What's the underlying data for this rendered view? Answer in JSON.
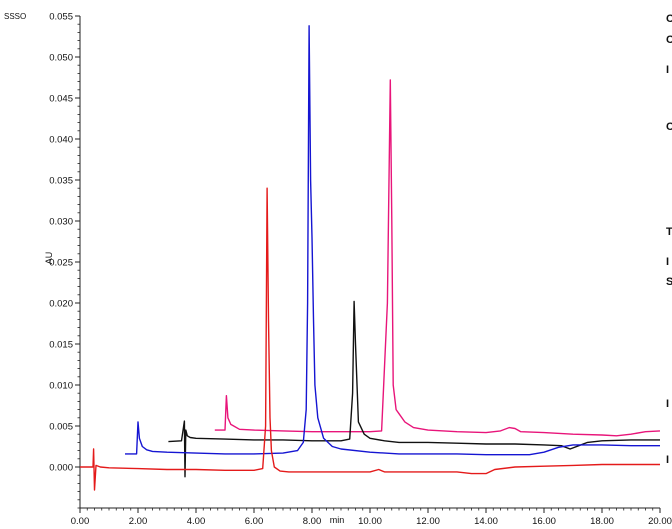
{
  "corner_label": "SSSO",
  "right_edge_glyphs": [
    "C",
    "C",
    "I",
    "C",
    "T",
    "I",
    "S",
    "I",
    "I"
  ],
  "chart_data": {
    "type": "line",
    "title": "",
    "xlabel": "min",
    "ylabel": "AU",
    "xlim": [
      0,
      20
    ],
    "ylim": [
      -0.005,
      0.055
    ],
    "x_ticks": [
      "0.00",
      "2.00",
      "4.00",
      "6.00",
      "8.00",
      "10.00",
      "12.00",
      "14.00",
      "16.00",
      "18.00",
      "20.00"
    ],
    "y_ticks": [
      "0.055",
      "0.050",
      "0.045",
      "0.040",
      "0.035",
      "0.030",
      "0.025",
      "0.020",
      "0.015",
      "0.010",
      "0.005",
      "0.000"
    ],
    "grid": false,
    "legend": "none",
    "series": [
      {
        "color": "#e8157a",
        "x": [
          4.65,
          5.0,
          5.05,
          5.1,
          5.2,
          5.3,
          5.5,
          6.0,
          7.0,
          8.0,
          9.0,
          10.0,
          10.4,
          10.6,
          10.7,
          10.75,
          10.8,
          10.9,
          11.0,
          11.2,
          11.5,
          12.0,
          13.0,
          14.0,
          14.5,
          14.8,
          15.0,
          15.2,
          16.0,
          17.0,
          18.0,
          18.5,
          19.0,
          19.5,
          20.0
        ],
        "y": [
          0.0045,
          0.0045,
          0.0087,
          0.006,
          0.0052,
          0.005,
          0.0046,
          0.0045,
          0.0044,
          0.0043,
          0.0043,
          0.0043,
          0.0044,
          0.02,
          0.0472,
          0.03,
          0.01,
          0.007,
          0.0065,
          0.0055,
          0.0048,
          0.0045,
          0.0043,
          0.0042,
          0.0044,
          0.0048,
          0.0047,
          0.0043,
          0.0042,
          0.004,
          0.0039,
          0.0038,
          0.004,
          0.0043,
          0.0044
        ]
      },
      {
        "color": "#111111",
        "x": [
          3.05,
          3.5,
          3.6,
          3.62,
          3.65,
          3.7,
          3.8,
          4.0,
          5.0,
          6.0,
          7.0,
          8.0,
          9.0,
          9.3,
          9.4,
          9.45,
          9.5,
          9.6,
          9.8,
          10.0,
          10.5,
          11.0,
          12.0,
          13.0,
          14.0,
          15.0,
          16.0,
          16.6,
          16.9,
          17.2,
          17.5,
          18.0,
          19.0,
          20.0
        ],
        "y": [
          0.0031,
          0.0032,
          0.0056,
          -0.0012,
          0.0045,
          0.0038,
          0.0036,
          0.0035,
          0.0034,
          0.0033,
          0.0033,
          0.0032,
          0.0032,
          0.0034,
          0.009,
          0.0202,
          0.015,
          0.0055,
          0.004,
          0.0035,
          0.0032,
          0.003,
          0.003,
          0.0029,
          0.0028,
          0.0028,
          0.0027,
          0.0026,
          0.0022,
          0.0026,
          0.003,
          0.0032,
          0.0033,
          0.0033
        ]
      },
      {
        "color": "#1515d2",
        "x": [
          1.55,
          1.95,
          2.0,
          2.05,
          2.15,
          2.3,
          2.5,
          3.0,
          4.0,
          5.0,
          6.0,
          7.0,
          7.5,
          7.7,
          7.8,
          7.85,
          7.9,
          7.95,
          8.0,
          8.05,
          8.1,
          8.2,
          8.4,
          8.7,
          9.0,
          10.0,
          11.0,
          12.0,
          13.0,
          14.0,
          15.0,
          15.5,
          16.0,
          16.5,
          17.0,
          18.0,
          19.0,
          20.0
        ],
        "y": [
          0.0016,
          0.0016,
          0.0055,
          0.0035,
          0.0025,
          0.0021,
          0.0019,
          0.0018,
          0.0017,
          0.0016,
          0.0016,
          0.0017,
          0.002,
          0.003,
          0.007,
          0.02,
          0.0538,
          0.035,
          0.028,
          0.018,
          0.01,
          0.006,
          0.0035,
          0.0025,
          0.0022,
          0.0018,
          0.0016,
          0.0016,
          0.0016,
          0.0015,
          0.0015,
          0.0015,
          0.0018,
          0.0024,
          0.0027,
          0.0027,
          0.0026,
          0.0026
        ]
      },
      {
        "color": "#e41a1a",
        "x": [
          0.0,
          0.35,
          0.45,
          0.47,
          0.5,
          0.55,
          0.7,
          1.0,
          2.0,
          3.0,
          4.0,
          5.0,
          6.0,
          6.3,
          6.4,
          6.45,
          6.5,
          6.55,
          6.6,
          6.7,
          6.9,
          7.2,
          8.0,
          9.0,
          10.0,
          10.3,
          10.5,
          11.0,
          12.0,
          13.0,
          13.5,
          14.0,
          14.3,
          15.0,
          16.0,
          17.0,
          18.0,
          19.0,
          20.0
        ],
        "y": [
          0.0,
          0.0,
          0.0,
          0.0022,
          -0.0028,
          0.0002,
          0.0,
          -0.0001,
          -0.0002,
          -0.0003,
          -0.0003,
          -0.0004,
          -0.0004,
          -0.0002,
          0.005,
          0.034,
          0.018,
          0.006,
          0.002,
          0.0,
          -0.0005,
          -0.0006,
          -0.0006,
          -0.0006,
          -0.0006,
          -0.0003,
          -0.0006,
          -0.0006,
          -0.0006,
          -0.0006,
          -0.0008,
          -0.0008,
          -0.0003,
          0.0,
          0.0001,
          0.0002,
          0.0003,
          0.0003,
          0.0003
        ]
      }
    ]
  }
}
